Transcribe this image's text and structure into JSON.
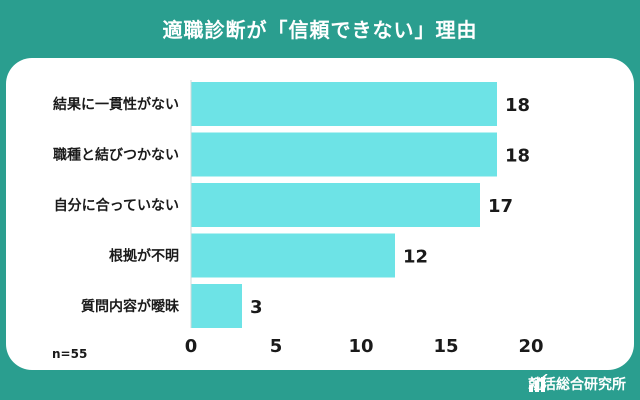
{
  "title": "適職診断が「信頼できない」理由",
  "footer": {
    "brand": "就活総合研究所",
    "icon": "bar-chart-logo-icon"
  },
  "colors": {
    "background": "#2a9e8f",
    "bar": "#6de3e6",
    "text": "#1a1a1a",
    "panel": "#ffffff"
  },
  "chart_data": {
    "type": "bar",
    "orientation": "horizontal",
    "categories": [
      "結果に一貫性がない",
      "職種と結びつかない",
      "自分に合っていない",
      "根拠が不明",
      "質問内容が曖昧"
    ],
    "values": [
      18,
      18,
      17,
      12,
      3
    ],
    "xlim": [
      0,
      20
    ],
    "xticks": [
      0,
      5,
      10,
      15,
      20
    ],
    "data_labels": true,
    "grid": false,
    "note": "n=55"
  }
}
